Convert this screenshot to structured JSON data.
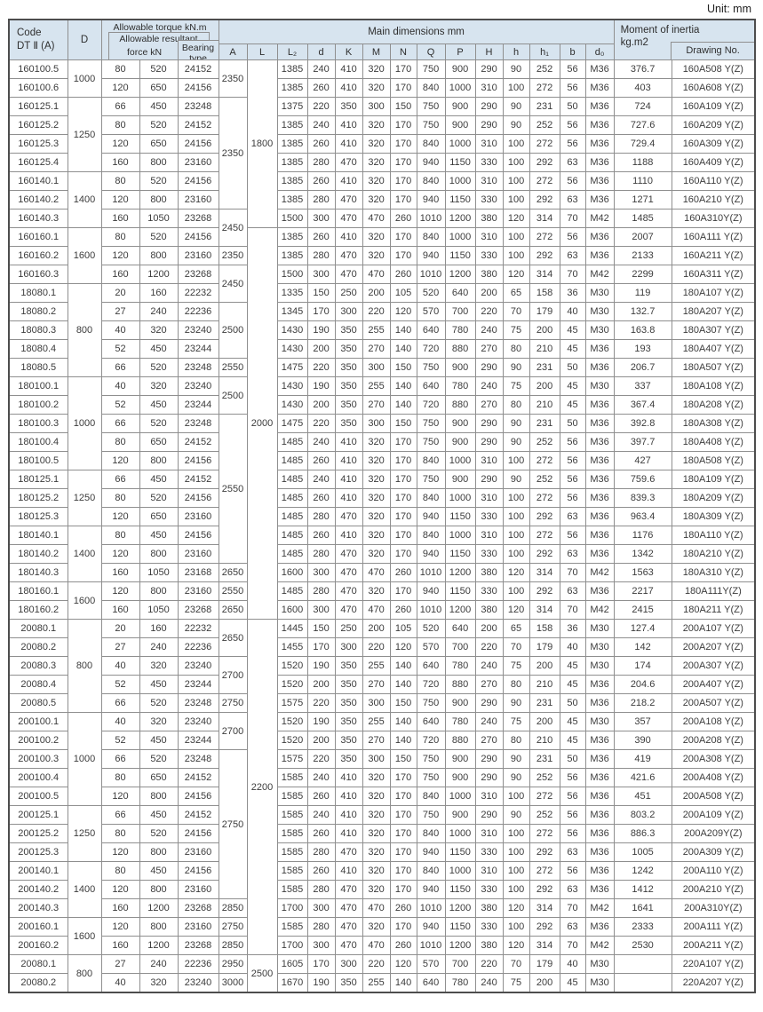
{
  "unit_label": "Unit: mm",
  "header": {
    "code_line1": "Code",
    "code_line2": "DT Ⅱ (A)",
    "d_label": "D",
    "torque_label": "Allowable torque kN.m",
    "force_line1": "Allowable resultant",
    "force_line2": "force kN",
    "bearing_line1": "Bearing",
    "bearing_line2": "type",
    "main_dims_label": "Main dimensions mm",
    "dim_letters": [
      "A",
      "L",
      "L₂",
      "d",
      "K",
      "M",
      "N",
      "Q",
      "P",
      "H",
      "h",
      "h₁",
      "b",
      "d₀"
    ],
    "inertia_line1": "Moment of inertia",
    "inertia_line2": "kg.m2",
    "drawing_label": "Drawing No."
  },
  "d_col": [
    {
      "row": 0,
      "span": 2,
      "value": "1000"
    },
    {
      "row": 2,
      "span": 4,
      "value": "1250"
    },
    {
      "row": 6,
      "span": 3,
      "value": "1400"
    },
    {
      "row": 9,
      "span": 3,
      "value": "1600"
    },
    {
      "row": 12,
      "span": 5,
      "value": "800"
    },
    {
      "row": 17,
      "span": 5,
      "value": "1000"
    },
    {
      "row": 22,
      "span": 3,
      "value": "1250"
    },
    {
      "row": 25,
      "span": 3,
      "value": "1400"
    },
    {
      "row": 28,
      "span": 2,
      "value": "1600"
    },
    {
      "row": 30,
      "span": 5,
      "value": "800"
    },
    {
      "row": 35,
      "span": 5,
      "value": "1000"
    },
    {
      "row": 40,
      "span": 3,
      "value": "1250"
    },
    {
      "row": 43,
      "span": 3,
      "value": "1400"
    },
    {
      "row": 46,
      "span": 2,
      "value": "1600"
    },
    {
      "row": 48,
      "span": 2,
      "value": "800"
    }
  ],
  "a_col": [
    {
      "row": 0,
      "span": 2,
      "value": "2350"
    },
    {
      "row": 2,
      "span": 6,
      "value": "2350"
    },
    {
      "row": 8,
      "span": 2,
      "value": "2450"
    },
    {
      "row": 10,
      "span": 1,
      "value": "2350"
    },
    {
      "row": 11,
      "span": 2,
      "value": "2450"
    },
    {
      "row": 13,
      "span": 3,
      "value": "2500"
    },
    {
      "row": 16,
      "span": 1,
      "value": "2550"
    },
    {
      "row": 17,
      "span": 2,
      "value": "2500"
    },
    {
      "row": 19,
      "span": 8,
      "value": "2550"
    },
    {
      "row": 27,
      "span": 1,
      "value": "2650"
    },
    {
      "row": 28,
      "span": 1,
      "value": "2550"
    },
    {
      "row": 29,
      "span": 1,
      "value": "2650"
    },
    {
      "row": 30,
      "span": 2,
      "value": "2650"
    },
    {
      "row": 32,
      "span": 2,
      "value": "2700"
    },
    {
      "row": 34,
      "span": 1,
      "value": "2750"
    },
    {
      "row": 35,
      "span": 2,
      "value": "2700"
    },
    {
      "row": 37,
      "span": 8,
      "value": "2750"
    },
    {
      "row": 45,
      "span": 1,
      "value": "2850"
    },
    {
      "row": 46,
      "span": 1,
      "value": "2750"
    },
    {
      "row": 47,
      "span": 1,
      "value": "2850"
    },
    {
      "row": 48,
      "span": 1,
      "value": "2950"
    },
    {
      "row": 49,
      "span": 1,
      "value": "3000"
    }
  ],
  "l_col": [
    {
      "row": 0,
      "span": 9,
      "value": "1800"
    },
    {
      "row": 9,
      "span": 21,
      "value": "2000"
    },
    {
      "row": 30,
      "span": 18,
      "value": "2200"
    },
    {
      "row": 48,
      "span": 2,
      "value": "2500"
    }
  ],
  "rows": [
    [
      "160100.5",
      "80",
      "520",
      "24152",
      "1385",
      "240",
      "410",
      "320",
      "170",
      "750",
      "900",
      "290",
      "90",
      "252",
      "56",
      "M36",
      "376.7",
      "160A508 Y(Z)"
    ],
    [
      "160100.6",
      "120",
      "650",
      "24156",
      "1385",
      "260",
      "410",
      "320",
      "170",
      "840",
      "1000",
      "310",
      "100",
      "272",
      "56",
      "M36",
      "403",
      "160A608 Y(Z)"
    ],
    [
      "160125.1",
      "66",
      "450",
      "23248",
      "1375",
      "220",
      "350",
      "300",
      "150",
      "750",
      "900",
      "290",
      "90",
      "231",
      "50",
      "M36",
      "724",
      "160A109 Y(Z)"
    ],
    [
      "160125.2",
      "80",
      "520",
      "24152",
      "1385",
      "240",
      "410",
      "320",
      "170",
      "750",
      "900",
      "290",
      "90",
      "252",
      "56",
      "M36",
      "727.6",
      "160A209 Y(Z)"
    ],
    [
      "160125.3",
      "120",
      "650",
      "24156",
      "1385",
      "260",
      "410",
      "320",
      "170",
      "840",
      "1000",
      "310",
      "100",
      "272",
      "56",
      "M36",
      "729.4",
      "160A309 Y(Z)"
    ],
    [
      "160125.4",
      "160",
      "800",
      "23160",
      "1385",
      "280",
      "470",
      "320",
      "170",
      "940",
      "1150",
      "330",
      "100",
      "292",
      "63",
      "M36",
      "1188",
      "160A409 Y(Z)"
    ],
    [
      "160140.1",
      "80",
      "520",
      "24156",
      "1385",
      "260",
      "410",
      "320",
      "170",
      "840",
      "1000",
      "310",
      "100",
      "272",
      "56",
      "M36",
      "1110",
      "160A110 Y(Z)"
    ],
    [
      "160140.2",
      "120",
      "800",
      "23160",
      "1385",
      "280",
      "470",
      "320",
      "170",
      "940",
      "1150",
      "330",
      "100",
      "292",
      "63",
      "M36",
      "1271",
      "160A210 Y(Z)"
    ],
    [
      "160140.3",
      "160",
      "1050",
      "23268",
      "1500",
      "300",
      "470",
      "470",
      "260",
      "1010",
      "1200",
      "380",
      "120",
      "314",
      "70",
      "M42",
      "1485",
      "160A310Y(Z)"
    ],
    [
      "160160.1",
      "80",
      "520",
      "24156",
      "1385",
      "260",
      "410",
      "320",
      "170",
      "840",
      "1000",
      "310",
      "100",
      "272",
      "56",
      "M36",
      "2007",
      "160A111 Y(Z)"
    ],
    [
      "160160.2",
      "120",
      "800",
      "23160",
      "1385",
      "280",
      "470",
      "320",
      "170",
      "940",
      "1150",
      "330",
      "100",
      "292",
      "63",
      "M36",
      "2133",
      "160A211 Y(Z)"
    ],
    [
      "160160.3",
      "160",
      "1200",
      "23268",
      "1500",
      "300",
      "470",
      "470",
      "260",
      "1010",
      "1200",
      "380",
      "120",
      "314",
      "70",
      "M42",
      "2299",
      "160A311 Y(Z)"
    ],
    [
      "18080.1",
      "20",
      "160",
      "22232",
      "1335",
      "150",
      "250",
      "200",
      "105",
      "520",
      "640",
      "200",
      "65",
      "158",
      "36",
      "M30",
      "119",
      "180A107 Y(Z)"
    ],
    [
      "18080.2",
      "27",
      "240",
      "22236",
      "1345",
      "170",
      "300",
      "220",
      "120",
      "570",
      "700",
      "220",
      "70",
      "179",
      "40",
      "M30",
      "132.7",
      "180A207 Y(Z)"
    ],
    [
      "18080.3",
      "40",
      "320",
      "23240",
      "1430",
      "190",
      "350",
      "255",
      "140",
      "640",
      "780",
      "240",
      "75",
      "200",
      "45",
      "M30",
      "163.8",
      "180A307 Y(Z)"
    ],
    [
      "18080.4",
      "52",
      "450",
      "23244",
      "1430",
      "200",
      "350",
      "270",
      "140",
      "720",
      "880",
      "270",
      "80",
      "210",
      "45",
      "M36",
      "193",
      "180A407 Y(Z)"
    ],
    [
      "18080.5",
      "66",
      "520",
      "23248",
      "1475",
      "220",
      "350",
      "300",
      "150",
      "750",
      "900",
      "290",
      "90",
      "231",
      "50",
      "M36",
      "206.7",
      "180A507 Y(Z)"
    ],
    [
      "180100.1",
      "40",
      "320",
      "23240",
      "1430",
      "190",
      "350",
      "255",
      "140",
      "640",
      "780",
      "240",
      "75",
      "200",
      "45",
      "M30",
      "337",
      "180A108 Y(Z)"
    ],
    [
      "180100.2",
      "52",
      "450",
      "23244",
      "1430",
      "200",
      "350",
      "270",
      "140",
      "720",
      "880",
      "270",
      "80",
      "210",
      "45",
      "M36",
      "367.4",
      "180A208 Y(Z)"
    ],
    [
      "180100.3",
      "66",
      "520",
      "23248",
      "1475",
      "220",
      "350",
      "300",
      "150",
      "750",
      "900",
      "290",
      "90",
      "231",
      "50",
      "M36",
      "392.8",
      "180A308 Y(Z)"
    ],
    [
      "180100.4",
      "80",
      "650",
      "24152",
      "1485",
      "240",
      "410",
      "320",
      "170",
      "750",
      "900",
      "290",
      "90",
      "252",
      "56",
      "M36",
      "397.7",
      "180A408 Y(Z)"
    ],
    [
      "180100.5",
      "120",
      "800",
      "24156",
      "1485",
      "260",
      "410",
      "320",
      "170",
      "840",
      "1000",
      "310",
      "100",
      "272",
      "56",
      "M36",
      "427",
      "180A508 Y(Z)"
    ],
    [
      "180125.1",
      "66",
      "450",
      "24152",
      "1485",
      "240",
      "410",
      "320",
      "170",
      "750",
      "900",
      "290",
      "90",
      "252",
      "56",
      "M36",
      "759.6",
      "180A109 Y(Z)"
    ],
    [
      "180125.2",
      "80",
      "520",
      "24156",
      "1485",
      "260",
      "410",
      "320",
      "170",
      "840",
      "1000",
      "310",
      "100",
      "272",
      "56",
      "M36",
      "839.3",
      "180A209 Y(Z)"
    ],
    [
      "180125.3",
      "120",
      "650",
      "23160",
      "1485",
      "280",
      "470",
      "320",
      "170",
      "940",
      "1150",
      "330",
      "100",
      "292",
      "63",
      "M36",
      "963.4",
      "180A309 Y(Z)"
    ],
    [
      "180140.1",
      "80",
      "450",
      "24156",
      "1485",
      "260",
      "410",
      "320",
      "170",
      "840",
      "1000",
      "310",
      "100",
      "272",
      "56",
      "M36",
      "1176",
      "180A110 Y(Z)"
    ],
    [
      "180140.2",
      "120",
      "800",
      "23160",
      "1485",
      "280",
      "470",
      "320",
      "170",
      "940",
      "1150",
      "330",
      "100",
      "292",
      "63",
      "M36",
      "1342",
      "180A210 Y(Z)"
    ],
    [
      "180140.3",
      "160",
      "1050",
      "23168",
      "1600",
      "300",
      "470",
      "470",
      "260",
      "1010",
      "1200",
      "380",
      "120",
      "314",
      "70",
      "M42",
      "1563",
      "180A310 Y(Z)"
    ],
    [
      "180160.1",
      "120",
      "800",
      "23160",
      "1485",
      "280",
      "470",
      "320",
      "170",
      "940",
      "1150",
      "330",
      "100",
      "292",
      "63",
      "M36",
      "2217",
      "180A111Y(Z)"
    ],
    [
      "180160.2",
      "160",
      "1050",
      "23268",
      "1600",
      "300",
      "470",
      "470",
      "260",
      "1010",
      "1200",
      "380",
      "120",
      "314",
      "70",
      "M42",
      "2415",
      "180A211 Y(Z)"
    ],
    [
      "20080.1",
      "20",
      "160",
      "22232",
      "1445",
      "150",
      "250",
      "200",
      "105",
      "520",
      "640",
      "200",
      "65",
      "158",
      "36",
      "M30",
      "127.4",
      "200A107 Y(Z)"
    ],
    [
      "20080.2",
      "27",
      "240",
      "22236",
      "1455",
      "170",
      "300",
      "220",
      "120",
      "570",
      "700",
      "220",
      "70",
      "179",
      "40",
      "M30",
      "142",
      "200A207 Y(Z)"
    ],
    [
      "20080.3",
      "40",
      "320",
      "23240",
      "1520",
      "190",
      "350",
      "255",
      "140",
      "640",
      "780",
      "240",
      "75",
      "200",
      "45",
      "M30",
      "174",
      "200A307 Y(Z)"
    ],
    [
      "20080.4",
      "52",
      "450",
      "23244",
      "1520",
      "200",
      "350",
      "270",
      "140",
      "720",
      "880",
      "270",
      "80",
      "210",
      "45",
      "M36",
      "204.6",
      "200A407 Y(Z)"
    ],
    [
      "20080.5",
      "66",
      "520",
      "23248",
      "1575",
      "220",
      "350",
      "300",
      "150",
      "750",
      "900",
      "290",
      "90",
      "231",
      "50",
      "M36",
      "218.2",
      "200A507 Y(Z)"
    ],
    [
      "200100.1",
      "40",
      "320",
      "23240",
      "1520",
      "190",
      "350",
      "255",
      "140",
      "640",
      "780",
      "240",
      "75",
      "200",
      "45",
      "M30",
      "357",
      "200A108 Y(Z)"
    ],
    [
      "200100.2",
      "52",
      "450",
      "23244",
      "1520",
      "200",
      "350",
      "270",
      "140",
      "720",
      "880",
      "270",
      "80",
      "210",
      "45",
      "M36",
      "390",
      "200A208 Y(Z)"
    ],
    [
      "200100.3",
      "66",
      "520",
      "23248",
      "1575",
      "220",
      "350",
      "300",
      "150",
      "750",
      "900",
      "290",
      "90",
      "231",
      "50",
      "M36",
      "419",
      "200A308 Y(Z)"
    ],
    [
      "200100.4",
      "80",
      "650",
      "24152",
      "1585",
      "240",
      "410",
      "320",
      "170",
      "750",
      "900",
      "290",
      "90",
      "252",
      "56",
      "M36",
      "421.6",
      "200A408 Y(Z)"
    ],
    [
      "200100.5",
      "120",
      "800",
      "24156",
      "1585",
      "260",
      "410",
      "320",
      "170",
      "840",
      "1000",
      "310",
      "100",
      "272",
      "56",
      "M36",
      "451",
      "200A508 Y(Z)"
    ],
    [
      "200125.1",
      "66",
      "450",
      "24152",
      "1585",
      "240",
      "410",
      "320",
      "170",
      "750",
      "900",
      "290",
      "90",
      "252",
      "56",
      "M36",
      "803.2",
      "200A109 Y(Z)"
    ],
    [
      "200125.2",
      "80",
      "520",
      "24156",
      "1585",
      "260",
      "410",
      "320",
      "170",
      "840",
      "1000",
      "310",
      "100",
      "272",
      "56",
      "M36",
      "886.3",
      "200A209Y(Z)"
    ],
    [
      "200125.3",
      "120",
      "800",
      "23160",
      "1585",
      "280",
      "470",
      "320",
      "170",
      "940",
      "1150",
      "330",
      "100",
      "292",
      "63",
      "M36",
      "1005",
      "200A309 Y(Z)"
    ],
    [
      "200140.1",
      "80",
      "450",
      "24156",
      "1585",
      "260",
      "410",
      "320",
      "170",
      "840",
      "1000",
      "310",
      "100",
      "272",
      "56",
      "M36",
      "1242",
      "200A110 Y(Z)"
    ],
    [
      "200140.2",
      "120",
      "800",
      "23160",
      "1585",
      "280",
      "470",
      "320",
      "170",
      "940",
      "1150",
      "330",
      "100",
      "292",
      "63",
      "M36",
      "1412",
      "200A210 Y(Z)"
    ],
    [
      "200140.3",
      "160",
      "1200",
      "23268",
      "1700",
      "300",
      "470",
      "470",
      "260",
      "1010",
      "1200",
      "380",
      "120",
      "314",
      "70",
      "M42",
      "1641",
      "200A310Y(Z)"
    ],
    [
      "200160.1",
      "120",
      "800",
      "23160",
      "1585",
      "280",
      "470",
      "320",
      "170",
      "940",
      "1150",
      "330",
      "100",
      "292",
      "63",
      "M36",
      "2333",
      "200A111 Y(Z)"
    ],
    [
      "200160.2",
      "160",
      "1200",
      "23268",
      "1700",
      "300",
      "470",
      "470",
      "260",
      "1010",
      "1200",
      "380",
      "120",
      "314",
      "70",
      "M42",
      "2530",
      "200A211 Y(Z)"
    ],
    [
      "20080.1",
      "27",
      "240",
      "22236",
      "1605",
      "170",
      "300",
      "220",
      "120",
      "570",
      "700",
      "220",
      "70",
      "179",
      "40",
      "M30",
      "",
      "220A107 Y(Z)"
    ],
    [
      "20080.2",
      "40",
      "320",
      "23240",
      "1670",
      "190",
      "350",
      "255",
      "140",
      "640",
      "780",
      "240",
      "75",
      "200",
      "45",
      "M30",
      "",
      "220A207 Y(Z)"
    ]
  ]
}
